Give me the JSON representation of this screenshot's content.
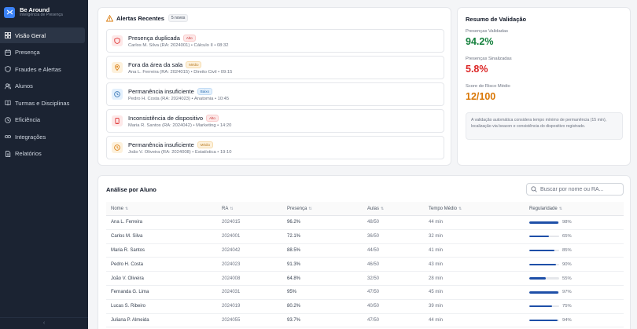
{
  "app": {
    "name": "Be Around",
    "subtitle": "Inteligência de Presença"
  },
  "colors": {
    "sidebar": "#1b2332",
    "accent": "#3b82f6",
    "green": "#15803d",
    "red": "#dc2626",
    "amber": "#d97706"
  },
  "nav": [
    {
      "label": "Visão Geral",
      "icon": "grid-icon",
      "active": true
    },
    {
      "label": "Presença",
      "icon": "calendar-icon",
      "active": false
    },
    {
      "label": "Fraudes e Alertas",
      "icon": "shield-icon",
      "active": false
    },
    {
      "label": "Alunos",
      "icon": "users-icon",
      "active": false
    },
    {
      "label": "Turmas e Disciplinas",
      "icon": "book-icon",
      "active": false
    },
    {
      "label": "Eficiência",
      "icon": "activity-icon",
      "active": false
    },
    {
      "label": "Integrações",
      "icon": "link-icon",
      "active": false
    },
    {
      "label": "Relatórios",
      "icon": "file-icon",
      "active": false
    }
  ],
  "collapse_icon": "‹",
  "alerts": {
    "title": "Alertas Recentes",
    "count": "5 novos",
    "items": [
      {
        "title": "Presença duplicada",
        "severity": "Alto",
        "detail": "Carlos M. Silva (RA: 2024001) • Cálculo II • 08:32",
        "icon": "shield-icon"
      },
      {
        "title": "Fora da área da sala",
        "severity": "Médio",
        "detail": "Ana L. Ferreira (RA: 2024015) • Direito Civil • 09:15",
        "icon": "pin-icon"
      },
      {
        "title": "Permanência insuficiente",
        "severity": "Baixo",
        "detail": "Pedro H. Costa (RA: 2024023) • Anatomia • 10:45",
        "icon": "clock-icon"
      },
      {
        "title": "Inconsistência de dispositivo",
        "severity": "Alto",
        "detail": "Maria R. Santos (RA: 2024042) • Marketing • 14:20",
        "icon": "phone-icon"
      },
      {
        "title": "Permanência insuficiente",
        "severity": "Médio",
        "detail": "João V. Oliveira (RA: 2024008) • Estatística • 19:10",
        "icon": "clock-icon"
      }
    ]
  },
  "summary": {
    "title": "Resumo de Validação",
    "validated_label": "Presenças Validadas",
    "validated_value": "94.2%",
    "flagged_label": "Presenças Sinalizadas",
    "flagged_value": "5.8%",
    "risk_label": "Score de Risco Médio",
    "risk_value": "12/100",
    "note": "A validação automática considera tempo mínimo de permanência (15 min), localização via beacon e consistência do dispositivo registrado."
  },
  "table": {
    "title": "Análise por Aluno",
    "search_placeholder": "Buscar por nome ou RA...",
    "headers": [
      "Nome",
      "RA",
      "Presença",
      "Aulas",
      "Tempo Médio",
      "Regularidade"
    ],
    "rows": [
      {
        "name": "Ana L. Ferreira",
        "ra": "2024015",
        "presence": "96.2%",
        "presence_color": "green",
        "classes": "48/50",
        "time": "44 min",
        "regularity": 98,
        "regularity_label": "98%"
      },
      {
        "name": "Carlos M. Silva",
        "ra": "2024001",
        "presence": "72.1%",
        "presence_color": "red",
        "classes": "36/50",
        "time": "32 min",
        "regularity": 65,
        "regularity_label": "65%"
      },
      {
        "name": "Maria R. Santos",
        "ra": "2024042",
        "presence": "88.5%",
        "presence_color": "amber",
        "classes": "44/50",
        "time": "41 min",
        "regularity": 85,
        "regularity_label": "85%"
      },
      {
        "name": "Pedro H. Costa",
        "ra": "2024023",
        "presence": "91.3%",
        "presence_color": "green",
        "classes": "46/50",
        "time": "43 min",
        "regularity": 90,
        "regularity_label": "90%"
      },
      {
        "name": "João V. Oliveira",
        "ra": "2024008",
        "presence": "64.8%",
        "presence_color": "red",
        "classes": "32/50",
        "time": "28 min",
        "regularity": 55,
        "regularity_label": "55%"
      },
      {
        "name": "Fernanda G. Lima",
        "ra": "2024031",
        "presence": "95%",
        "presence_color": "green",
        "classes": "47/50",
        "time": "45 min",
        "regularity": 97,
        "regularity_label": "97%"
      },
      {
        "name": "Lucas S. Ribeiro",
        "ra": "2024019",
        "presence": "80.2%",
        "presence_color": "amber",
        "classes": "40/50",
        "time": "39 min",
        "regularity": 75,
        "regularity_label": "75%"
      },
      {
        "name": "Juliana P. Almeida",
        "ra": "2024055",
        "presence": "93.7%",
        "presence_color": "green",
        "classes": "47/50",
        "time": "44 min",
        "regularity": 94,
        "regularity_label": "94%"
      }
    ]
  }
}
